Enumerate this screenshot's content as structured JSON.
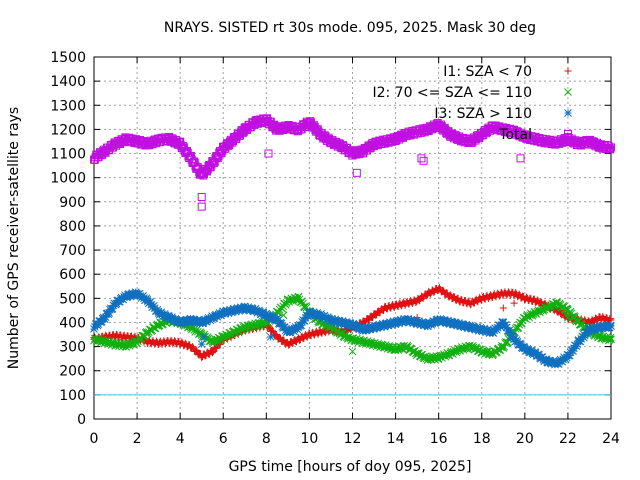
{
  "chart_data": {
    "type": "scatter",
    "title": "NRAYS. SISTED rt 30s mode. 095, 2025. Mask 30 deg",
    "xlabel": "GPS time [hours of doy 095, 2025]",
    "ylabel": "Number of GPS receiver-satellite rays",
    "xlim": [
      0,
      24
    ],
    "ylim": [
      0,
      1500
    ],
    "xticks": [
      0,
      2,
      4,
      6,
      8,
      10,
      12,
      14,
      16,
      18,
      20,
      22,
      24
    ],
    "yticks": [
      0,
      100,
      200,
      300,
      400,
      500,
      600,
      700,
      800,
      900,
      1000,
      1100,
      1200,
      1300,
      1400,
      1500
    ],
    "grid": true,
    "legend_position": "top-right",
    "threshold_line": {
      "y": 100,
      "color": "#33ccdd"
    },
    "series": [
      {
        "name": "I1: SZA < 70",
        "marker": "+",
        "color": "#e01010",
        "x": [
          0,
          0.5,
          1,
          1.5,
          2,
          2.5,
          3,
          3.5,
          4,
          4.5,
          5,
          5.5,
          6,
          6.5,
          7,
          7.5,
          8,
          8.5,
          9,
          9.5,
          10,
          10.5,
          11,
          11.5,
          12,
          12.5,
          13,
          13.5,
          14,
          14.5,
          15,
          15.5,
          16,
          16.5,
          17,
          17.5,
          18,
          18.5,
          19,
          19.5,
          20,
          20.5,
          21,
          21.5,
          22,
          22.5,
          23,
          23.5,
          24
        ],
        "y": [
          330,
          340,
          345,
          340,
          335,
          320,
          315,
          320,
          315,
          300,
          260,
          280,
          330,
          350,
          370,
          380,
          390,
          340,
          310,
          330,
          350,
          360,
          370,
          360,
          380,
          400,
          430,
          460,
          470,
          480,
          490,
          520,
          540,
          510,
          490,
          480,
          500,
          510,
          520,
          520,
          500,
          490,
          470,
          450,
          420,
          410,
          400,
          420,
          410
        ]
      },
      {
        "name": "I2: 70 <= SZA <= 110",
        "marker": "x",
        "color": "#10b010",
        "x": [
          0,
          0.5,
          1,
          1.5,
          2,
          2.5,
          3,
          3.5,
          4,
          4.5,
          5,
          5.5,
          6,
          6.5,
          7,
          7.5,
          8,
          8.5,
          9,
          9.5,
          10,
          10.5,
          11,
          11.5,
          12,
          12.5,
          13,
          13.5,
          14,
          14.5,
          15,
          15.5,
          16,
          16.5,
          17,
          17.5,
          18,
          18.5,
          19,
          19.5,
          20,
          20.5,
          21,
          21.5,
          22,
          22.5,
          23,
          23.5,
          24
        ],
        "y": [
          330,
          320,
          310,
          305,
          320,
          360,
          390,
          410,
          400,
          380,
          350,
          320,
          340,
          360,
          380,
          390,
          400,
          440,
          490,
          500,
          440,
          400,
          380,
          350,
          330,
          320,
          310,
          300,
          290,
          300,
          270,
          250,
          255,
          270,
          290,
          300,
          280,
          270,
          300,
          360,
          420,
          440,
          460,
          480,
          450,
          400,
          360,
          340,
          330
        ]
      },
      {
        "name": "I3: SZA > 110",
        "marker": "*",
        "color": "#1070c0",
        "x": [
          0,
          0.5,
          1,
          1.5,
          2,
          2.5,
          3,
          3.5,
          4,
          4.5,
          5,
          5.5,
          6,
          6.5,
          7,
          7.5,
          8,
          8.5,
          9,
          9.5,
          10,
          10.5,
          11,
          11.5,
          12,
          12.5,
          13,
          13.5,
          14,
          14.5,
          15,
          15.5,
          16,
          16.5,
          17,
          17.5,
          18,
          18.5,
          19,
          19.5,
          20,
          20.5,
          21,
          21.5,
          22,
          22.5,
          23,
          23.5,
          24
        ],
        "y": [
          380,
          420,
          480,
          510,
          520,
          490,
          440,
          420,
          400,
          410,
          400,
          420,
          440,
          450,
          460,
          450,
          430,
          410,
          360,
          380,
          440,
          430,
          410,
          400,
          390,
          370,
          380,
          390,
          400,
          410,
          400,
          390,
          410,
          400,
          390,
          380,
          370,
          360,
          400,
          330,
          290,
          270,
          240,
          230,
          260,
          320,
          370,
          380,
          385
        ]
      },
      {
        "name": "Total",
        "marker": "square",
        "color": "#c010e0",
        "x": [
          0,
          0.5,
          1,
          1.5,
          2,
          2.5,
          3,
          3.5,
          4,
          4.5,
          5,
          5.5,
          6,
          6.5,
          7,
          7.5,
          8,
          8.5,
          9,
          9.5,
          10,
          10.5,
          11,
          11.5,
          12,
          12.5,
          13,
          13.5,
          14,
          14.5,
          15,
          15.5,
          16,
          16.5,
          17,
          17.5,
          18,
          18.5,
          19,
          19.5,
          20,
          20.5,
          21,
          21.5,
          22,
          22.5,
          23,
          23.5,
          24
        ],
        "y": [
          1080,
          1110,
          1140,
          1160,
          1150,
          1140,
          1155,
          1160,
          1140,
          1080,
          1010,
          1060,
          1120,
          1160,
          1200,
          1230,
          1240,
          1200,
          1210,
          1200,
          1230,
          1180,
          1150,
          1130,
          1100,
          1110,
          1140,
          1150,
          1160,
          1180,
          1190,
          1200,
          1220,
          1180,
          1160,
          1150,
          1180,
          1210,
          1200,
          1190,
          1170,
          1160,
          1150,
          1145,
          1160,
          1140,
          1150,
          1130,
          1125
        ]
      }
    ],
    "outliers": {
      "Total": [
        [
          5.0,
          880
        ],
        [
          5.0,
          920
        ],
        [
          8.1,
          1100
        ],
        [
          12.2,
          1020
        ],
        [
          15.2,
          1080
        ],
        [
          15.3,
          1070
        ],
        [
          19.8,
          1080
        ]
      ],
      "I1: SZA < 70": [
        [
          15.0,
          420
        ],
        [
          19.0,
          460
        ],
        [
          19.5,
          480
        ]
      ],
      "I2: 70 <= SZA <= 110": [
        [
          8.8,
          430
        ],
        [
          12.0,
          280
        ],
        [
          22.0,
          420
        ]
      ],
      "I3: SZA > 110": [
        [
          5.0,
          310
        ],
        [
          5.1,
          340
        ],
        [
          8.2,
          340
        ]
      ]
    }
  }
}
